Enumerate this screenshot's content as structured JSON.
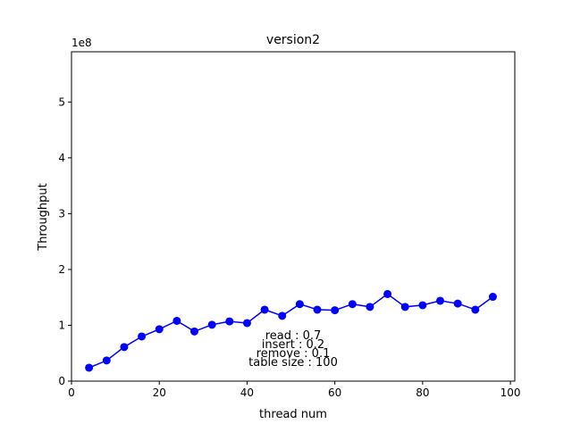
{
  "chart_data": {
    "type": "line",
    "title": "version2",
    "xlabel": "thread num",
    "ylabel": "Throughput",
    "y_offset_label": "1e8",
    "xlim": [
      0,
      101
    ],
    "ylim": [
      0,
      5.9
    ],
    "xticks": [
      0,
      20,
      40,
      60,
      80,
      100
    ],
    "yticks": [
      0,
      1,
      2,
      3,
      4,
      5
    ],
    "grid": false,
    "color": "#0000ff",
    "marker": "circle",
    "series": [
      {
        "x": [
          4,
          8,
          12,
          16,
          20,
          24,
          28,
          32,
          36,
          40,
          44,
          48,
          52,
          56,
          60,
          64,
          68,
          72,
          76,
          80,
          84,
          88,
          92,
          96
        ],
        "values": [
          0.24,
          0.37,
          0.61,
          0.8,
          0.93,
          1.08,
          0.89,
          1.01,
          1.07,
          1.04,
          1.28,
          1.17,
          1.38,
          1.28,
          1.27,
          1.38,
          1.33,
          1.56,
          1.33,
          1.36,
          1.44,
          1.39,
          1.28,
          1.51
        ]
      }
    ],
    "annotation_lines": [
      "read : 0.7",
      "insert : 0.2",
      "remove : 0.1",
      "table size : 100"
    ]
  }
}
